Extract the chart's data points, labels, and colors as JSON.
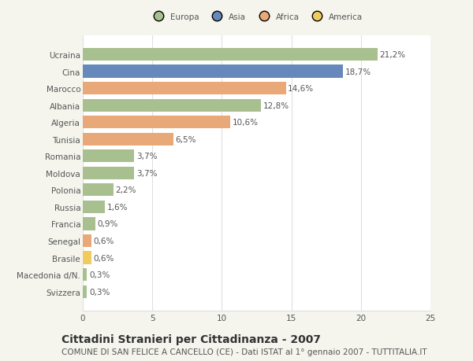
{
  "countries": [
    "Ucraina",
    "Cina",
    "Marocco",
    "Albania",
    "Algeria",
    "Tunisia",
    "Romania",
    "Moldova",
    "Polonia",
    "Russia",
    "Francia",
    "Senegal",
    "Brasile",
    "Macedonia d/N.",
    "Svizzera"
  ],
  "values": [
    21.2,
    18.7,
    14.6,
    12.8,
    10.6,
    6.5,
    3.7,
    3.7,
    2.2,
    1.6,
    0.9,
    0.6,
    0.6,
    0.3,
    0.3
  ],
  "labels": [
    "21,2%",
    "18,7%",
    "14,6%",
    "12,8%",
    "10,6%",
    "6,5%",
    "3,7%",
    "3,7%",
    "2,2%",
    "1,6%",
    "0,9%",
    "0,6%",
    "0,6%",
    "0,3%",
    "0,3%"
  ],
  "continents": [
    "Europa",
    "Asia",
    "Africa",
    "Europa",
    "Africa",
    "Africa",
    "Europa",
    "Europa",
    "Europa",
    "Europa",
    "Europa",
    "Africa",
    "America",
    "Europa",
    "Europa"
  ],
  "continent_colors": {
    "Europa": "#a8c090",
    "Asia": "#6688bb",
    "Africa": "#e8a878",
    "America": "#f0cc60"
  },
  "legend_order": [
    "Europa",
    "Asia",
    "Africa",
    "America"
  ],
  "xlim": [
    0,
    25
  ],
  "xticks": [
    0,
    5,
    10,
    15,
    20,
    25
  ],
  "title": "Cittadini Stranieri per Cittadinanza - 2007",
  "subtitle": "COMUNE DI SAN FELICE A CANCELLO (CE) - Dati ISTAT al 1° gennaio 2007 - TUTTITALIA.IT",
  "background_color": "#f5f5ee",
  "bar_background": "#ffffff",
  "grid_color": "#e0e0e0",
  "text_color": "#555555",
  "label_fontsize": 7.5,
  "tick_fontsize": 7.5,
  "title_fontsize": 10,
  "subtitle_fontsize": 7.5,
  "bar_height": 0.75
}
